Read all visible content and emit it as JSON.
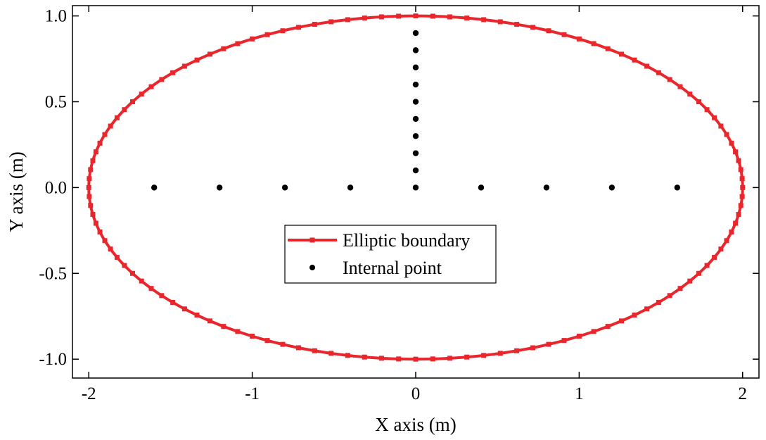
{
  "chart_data": {
    "type": "scatter",
    "xlabel": "X axis (m)",
    "ylabel": "Y axis (m)",
    "xlim": [
      -2.1,
      2.1
    ],
    "ylim": [
      -1.11,
      1.06
    ],
    "x_ticks": [
      -2,
      -1,
      0,
      1,
      2
    ],
    "x_tick_labels": [
      "-2",
      "-1",
      "0",
      "1",
      "2"
    ],
    "y_ticks": [
      -1.0,
      -0.5,
      0.0,
      0.5,
      1.0
    ],
    "y_tick_labels": [
      "-1.0",
      "-0.5",
      "0.0",
      "0.5",
      "1.0"
    ],
    "grid": false,
    "legend_position": "center",
    "series": [
      {
        "name": "Elliptic boundary",
        "kind": "line-with-markers",
        "color": "#e8262b",
        "shape": "ellipse",
        "semi_axis_x": 2,
        "semi_axis_y": 1,
        "marker_count": 120
      },
      {
        "name": "Internal point",
        "kind": "points",
        "color": "#000000",
        "points": [
          [
            -1.6,
            0
          ],
          [
            -1.2,
            0
          ],
          [
            -0.8,
            0
          ],
          [
            -0.4,
            0
          ],
          [
            0,
            0
          ],
          [
            0.4,
            0
          ],
          [
            0.8,
            0
          ],
          [
            1.2,
            0
          ],
          [
            1.6,
            0
          ],
          [
            0,
            0.1
          ],
          [
            0,
            0.2
          ],
          [
            0,
            0.3
          ],
          [
            0,
            0.4
          ],
          [
            0,
            0.5
          ],
          [
            0,
            0.6
          ],
          [
            0,
            0.7
          ],
          [
            0,
            0.8
          ],
          [
            0,
            0.9
          ]
        ]
      }
    ]
  }
}
